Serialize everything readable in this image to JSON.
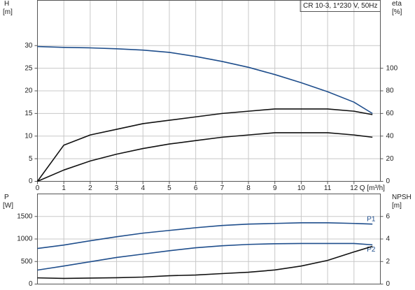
{
  "chart_data": [
    {
      "type": "line",
      "title": "CR 10-3, 1*230 V, 50Hz",
      "ylabel": "H",
      "yunit": "[m]",
      "y2label": "eta",
      "y2unit": "[%]",
      "xlabel": "Q [m³/h]",
      "x": [
        0,
        1,
        2,
        3,
        4,
        5,
        6,
        7,
        8,
        9,
        10,
        11,
        12,
        12.7
      ],
      "xlim": [
        0,
        13
      ],
      "xticks": [
        0,
        1,
        2,
        3,
        4,
        5,
        6,
        7,
        8,
        9,
        10,
        11,
        12
      ],
      "ylim": [
        0,
        40
      ],
      "yticks": [
        0,
        5,
        10,
        15,
        20,
        25,
        30
      ],
      "y2lim": [
        0,
        160
      ],
      "y2ticks": [
        0,
        20,
        40,
        60,
        80,
        100
      ],
      "grid": true,
      "series": [
        {
          "color": "#1f4e8c",
          "values": [
            29.8,
            29.6,
            29.5,
            29.3,
            29.0,
            28.5,
            27.6,
            26.5,
            25.2,
            23.6,
            21.8,
            19.8,
            17.5,
            15.0
          ]
        },
        {
          "color": "#111111",
          "axis": "y2",
          "values": [
            0,
            32,
            41,
            46,
            51,
            54,
            57,
            60,
            62,
            64,
            64,
            64,
            62,
            59
          ]
        },
        {
          "color": "#111111",
          "axis": "y2",
          "values": [
            0,
            10,
            18,
            24,
            29,
            33,
            36,
            39,
            41,
            43,
            43,
            43,
            41,
            39
          ]
        }
      ]
    },
    {
      "type": "line",
      "ylabel": "P",
      "yunit": "[W]",
      "y2label": "NPSH",
      "y2unit": "[m]",
      "x": [
        0,
        1,
        2,
        3,
        4,
        5,
        6,
        7,
        8,
        9,
        10,
        11,
        12,
        12.7
      ],
      "xlim": [
        0,
        13
      ],
      "ylim": [
        0,
        2000
      ],
      "yticks": [
        0,
        500,
        1000,
        1500
      ],
      "y2lim": [
        0,
        8
      ],
      "y2ticks": [
        0,
        2,
        4,
        6
      ],
      "grid": true,
      "series": [
        {
          "name": "P1",
          "color": "#1f4e8c",
          "values": [
            790,
            865,
            960,
            1050,
            1130,
            1190,
            1250,
            1300,
            1330,
            1345,
            1360,
            1360,
            1345,
            1330
          ]
        },
        {
          "name": "P2",
          "color": "#1f4e8c",
          "values": [
            310,
            400,
            495,
            590,
            665,
            740,
            805,
            850,
            880,
            895,
            900,
            900,
            900,
            870
          ]
        },
        {
          "color": "#111111",
          "axis": "y2",
          "values": [
            0.55,
            0.5,
            0.53,
            0.56,
            0.62,
            0.74,
            0.8,
            0.93,
            1.05,
            1.25,
            1.6,
            2.1,
            2.85,
            3.35
          ]
        }
      ]
    }
  ]
}
